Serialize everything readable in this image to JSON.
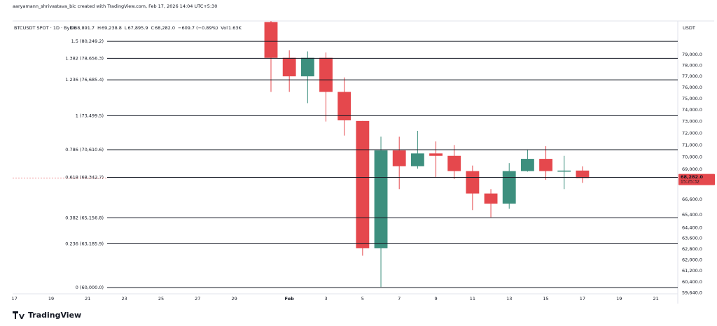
{
  "header": {
    "credit": "aaryamann_shrivastava_bic created with TradingView.com, Feb 17, 2026 14:04 UTC+5:30",
    "symbol": "BTCUSDT SPOT · 1D · Bybit",
    "legend_items": [
      {
        "key": "O",
        "value": "68,891.7"
      },
      {
        "key": "H",
        "value": "69,238.8"
      },
      {
        "key": "L",
        "value": "67,895.9"
      },
      {
        "key": "C",
        "value": "68,282.0"
      }
    ],
    "change": "−609.7 (−0.89%)",
    "volume": {
      "key": "Vol",
      "value": "1.63K"
    },
    "currency": "USDT"
  },
  "footer": {
    "brand": "TradingView"
  },
  "chart_data": {
    "type": "candlestick",
    "log_scale": true,
    "up_color": "#3d8f7e",
    "down_color": "#e5484d",
    "x": [
      14,
      15,
      16,
      17,
      18,
      19,
      20,
      21,
      22,
      23,
      24,
      25,
      26,
      27,
      28,
      29,
      30,
      31
    ],
    "open": [
      82100,
      78700,
      77000,
      78700,
      75600,
      73050,
      62850,
      70550,
      69250,
      70300,
      70100,
      68850,
      67050,
      66250,
      68850,
      69850,
      68800,
      68891.7
    ],
    "high": [
      82300,
      79400,
      79300,
      79200,
      76900,
      73050,
      71700,
      71700,
      72200,
      71300,
      71000,
      69300,
      67400,
      69500,
      70600,
      70900,
      70100,
      69238.8
    ],
    "low": [
      75600,
      75600,
      74600,
      73000,
      71800,
      62300,
      60050,
      67400,
      69050,
      68350,
      68200,
      65750,
      65200,
      65850,
      68800,
      68150,
      67400,
      67895.9
    ],
    "close": [
      78700,
      77000,
      78700,
      75600,
      73100,
      62850,
      70550,
      69250,
      70300,
      70100,
      68850,
      67050,
      66250,
      68850,
      69850,
      68850,
      68890,
      68282.0
    ],
    "last_price_label": "68,282.0",
    "countdown": "15:25:32",
    "fib_levels": [
      {
        "label": "1.5 (80,249.2)",
        "value": 80249.2
      },
      {
        "label": "1.382 (78,656.3)",
        "value": 78656.3
      },
      {
        "label": "1.236 (76,685.4)",
        "value": 76685.4
      },
      {
        "label": "1 (73,499.5)",
        "value": 73499.5
      },
      {
        "label": "0.786 (70,610.6)",
        "value": 70610.6
      },
      {
        "label": "0.618 (68,342.7)",
        "value": 68342.7
      },
      {
        "label": "0.382 (65,156.8)",
        "value": 65156.8
      },
      {
        "label": "0.236 (63,185.9)",
        "value": 63185.9
      },
      {
        "label": "0 (60,000.0)",
        "value": 60000.0
      }
    ],
    "xlim": [
      -0.1,
      36.2
    ],
    "xticks": [
      {
        "value": 0,
        "label": "17"
      },
      {
        "value": 2,
        "label": "19"
      },
      {
        "value": 4,
        "label": "21"
      },
      {
        "value": 6,
        "label": "23"
      },
      {
        "value": 8,
        "label": "25"
      },
      {
        "value": 10,
        "label": "27"
      },
      {
        "value": 12,
        "label": "29"
      },
      {
        "value": 15,
        "label": "Feb"
      },
      {
        "value": 17,
        "label": "3"
      },
      {
        "value": 19,
        "label": "5"
      },
      {
        "value": 21,
        "label": "7"
      },
      {
        "value": 23,
        "label": "9"
      },
      {
        "value": 25,
        "label": "11"
      },
      {
        "value": 27,
        "label": "13"
      },
      {
        "value": 29,
        "label": "15"
      },
      {
        "value": 31,
        "label": "17"
      },
      {
        "value": 33,
        "label": "19"
      },
      {
        "value": 35,
        "label": "21"
      }
    ],
    "ylim": [
      59560,
      82200
    ],
    "yticks": [
      {
        "value": 79000,
        "label": "79,000.0"
      },
      {
        "value": 78000,
        "label": "78,000.0"
      },
      {
        "value": 77000,
        "label": "77,000.0"
      },
      {
        "value": 76000,
        "label": "76,000.0"
      },
      {
        "value": 75000,
        "label": "75,000.0"
      },
      {
        "value": 74000,
        "label": "74,000.0"
      },
      {
        "value": 73000,
        "label": "73,000.0"
      },
      {
        "value": 72000,
        "label": "72,000.0"
      },
      {
        "value": 71000,
        "label": "71,000.0"
      },
      {
        "value": 70000,
        "label": "70,000.0"
      },
      {
        "value": 69000,
        "label": "69,000.0"
      },
      {
        "value": 66600,
        "label": "66,600.0"
      },
      {
        "value": 65400,
        "label": "65,400.0"
      },
      {
        "value": 64400,
        "label": "64,400.0"
      },
      {
        "value": 63600,
        "label": "63,600.0"
      },
      {
        "value": 62800,
        "label": "62,800.0"
      },
      {
        "value": 62000,
        "label": "62,000.0"
      },
      {
        "value": 61200,
        "label": "61,200.0"
      },
      {
        "value": 60400,
        "label": "60,400.0"
      },
      {
        "value": 59640,
        "label": "59,640.0"
      }
    ]
  }
}
